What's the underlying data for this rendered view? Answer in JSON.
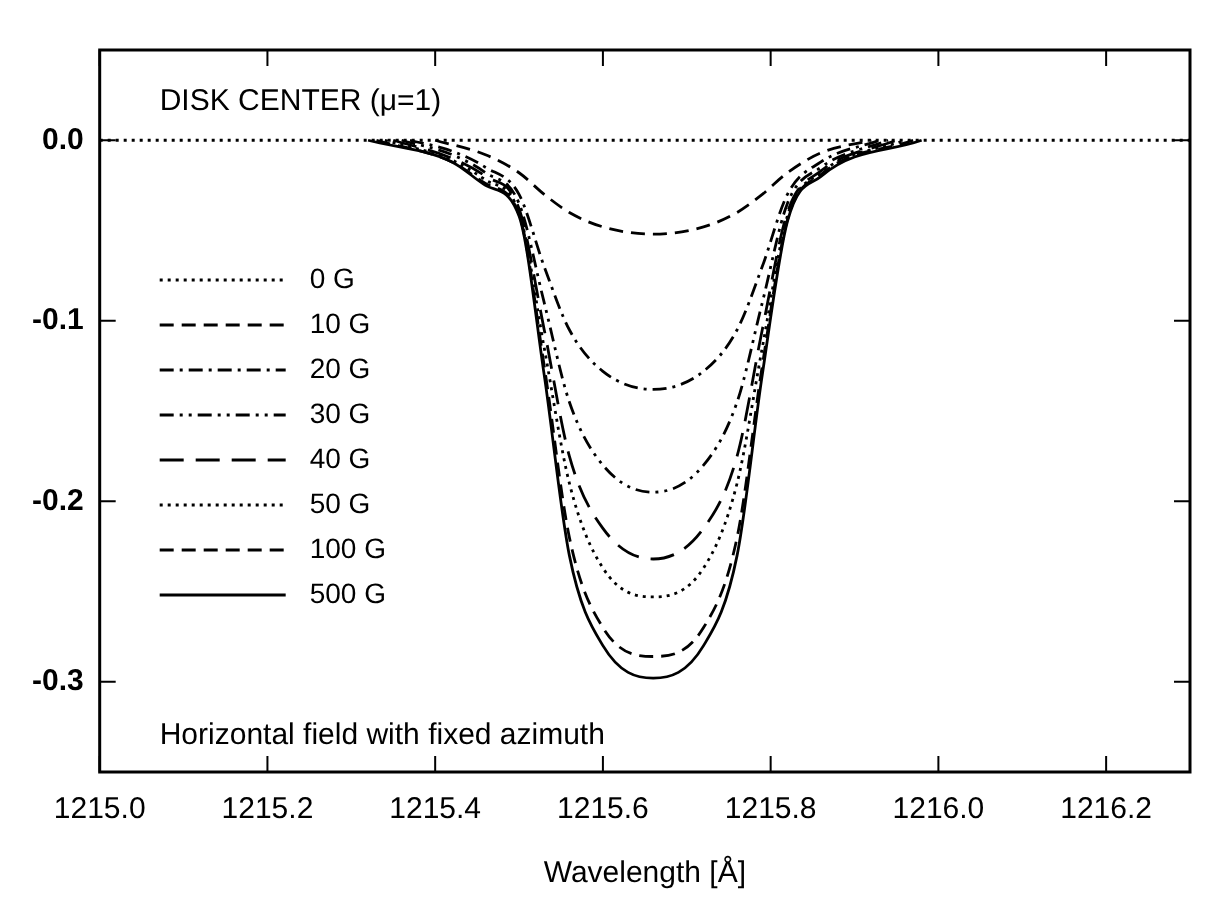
{
  "chart_data": {
    "type": "line",
    "xlabel": "Wavelength [Å]",
    "annotations": [
      "DISK CENTER (μ=1)",
      "Horizontal field with fixed azimuth"
    ],
    "series": [
      {
        "name": "0 G",
        "color": "#000000",
        "line_style": "dotted",
        "x": [
          1215.0,
          1216.3
        ],
        "values": [
          0,
          0
        ]
      },
      {
        "name": "10 G",
        "color": "#000000",
        "line_style": "dashed",
        "x": [
          1215.4,
          1215.46,
          1215.5,
          1215.53,
          1215.56,
          1215.6,
          1215.66,
          1215.72,
          1215.76,
          1215.79,
          1215.82,
          1215.86,
          1215.92
        ],
        "values": [
          0,
          -0.008,
          -0.018,
          -0.03,
          -0.04,
          -0.048,
          -0.052,
          -0.048,
          -0.04,
          -0.03,
          -0.018,
          -0.007,
          0
        ]
      },
      {
        "name": "20 G",
        "color": "#000000",
        "line_style": "dashdot",
        "x": [
          1215.37,
          1215.42,
          1215.46,
          1215.5,
          1215.53,
          1215.56,
          1215.6,
          1215.66,
          1215.72,
          1215.76,
          1215.79,
          1215.82,
          1215.86,
          1215.93
        ],
        "values": [
          0,
          -0.006,
          -0.015,
          -0.03,
          -0.07,
          -0.105,
          -0.128,
          -0.138,
          -0.128,
          -0.105,
          -0.07,
          -0.03,
          -0.012,
          0
        ]
      },
      {
        "name": "30 G",
        "color": "#000000",
        "line_style": "dashdotdot",
        "x": [
          1215.36,
          1215.42,
          1215.46,
          1215.5,
          1215.53,
          1215.56,
          1215.6,
          1215.66,
          1215.72,
          1215.76,
          1215.79,
          1215.82,
          1215.86,
          1215.94
        ],
        "values": [
          0,
          -0.008,
          -0.018,
          -0.035,
          -0.09,
          -0.145,
          -0.18,
          -0.195,
          -0.18,
          -0.145,
          -0.09,
          -0.035,
          -0.015,
          0
        ]
      },
      {
        "name": "40 G",
        "color": "#000000",
        "line_style": "longdash",
        "x": [
          1215.35,
          1215.42,
          1215.46,
          1215.5,
          1215.53,
          1215.56,
          1215.6,
          1215.66,
          1215.72,
          1215.76,
          1215.79,
          1215.82,
          1215.86,
          1215.95
        ],
        "values": [
          0,
          -0.01,
          -0.02,
          -0.038,
          -0.105,
          -0.175,
          -0.215,
          -0.232,
          -0.215,
          -0.175,
          -0.105,
          -0.04,
          -0.017,
          0
        ]
      },
      {
        "name": "50 G",
        "color": "#000000",
        "line_style": "dotted",
        "x": [
          1215.34,
          1215.42,
          1215.46,
          1215.5,
          1215.53,
          1215.56,
          1215.6,
          1215.66,
          1215.72,
          1215.76,
          1215.79,
          1215.82,
          1215.86,
          1215.96
        ],
        "values": [
          0,
          -0.011,
          -0.022,
          -0.04,
          -0.115,
          -0.19,
          -0.237,
          -0.253,
          -0.237,
          -0.19,
          -0.115,
          -0.042,
          -0.018,
          0
        ]
      },
      {
        "name": "100 G",
        "color": "#000000",
        "line_style": "dashed",
        "x": [
          1215.33,
          1215.42,
          1215.46,
          1215.5,
          1215.53,
          1215.56,
          1215.6,
          1215.66,
          1215.72,
          1215.76,
          1215.79,
          1215.82,
          1215.86,
          1215.97
        ],
        "values": [
          0,
          -0.012,
          -0.024,
          -0.041,
          -0.125,
          -0.22,
          -0.27,
          -0.286,
          -0.27,
          -0.22,
          -0.125,
          -0.044,
          -0.019,
          0
        ]
      },
      {
        "name": "500 G",
        "color": "#000000",
        "line_style": "solid",
        "x": [
          1215.32,
          1215.42,
          1215.46,
          1215.5,
          1215.53,
          1215.56,
          1215.6,
          1215.66,
          1215.72,
          1215.76,
          1215.79,
          1215.82,
          1215.86,
          1215.98
        ],
        "values": [
          0,
          -0.012,
          -0.025,
          -0.042,
          -0.13,
          -0.23,
          -0.28,
          -0.298,
          -0.28,
          -0.23,
          -0.13,
          -0.045,
          -0.02,
          0
        ]
      }
    ],
    "xlim": [
      1215.0,
      1216.3
    ],
    "xticks": [
      {
        "value": 1215.0,
        "label": "1215.0"
      },
      {
        "value": 1215.2,
        "label": "1215.2"
      },
      {
        "value": 1215.4,
        "label": "1215.4"
      },
      {
        "value": 1215.6,
        "label": "1215.6"
      },
      {
        "value": 1215.8,
        "label": "1215.8"
      },
      {
        "value": 1216.0,
        "label": "1216.0"
      },
      {
        "value": 1216.2,
        "label": "1216.2"
      }
    ],
    "ylim": [
      -0.35,
      0.05
    ],
    "yticks": [
      {
        "value": 0,
        "label": "0.0"
      },
      -0.1,
      -0.2,
      -0.3
    ],
    "legend": "left",
    "grid": false,
    "marker": "none"
  }
}
